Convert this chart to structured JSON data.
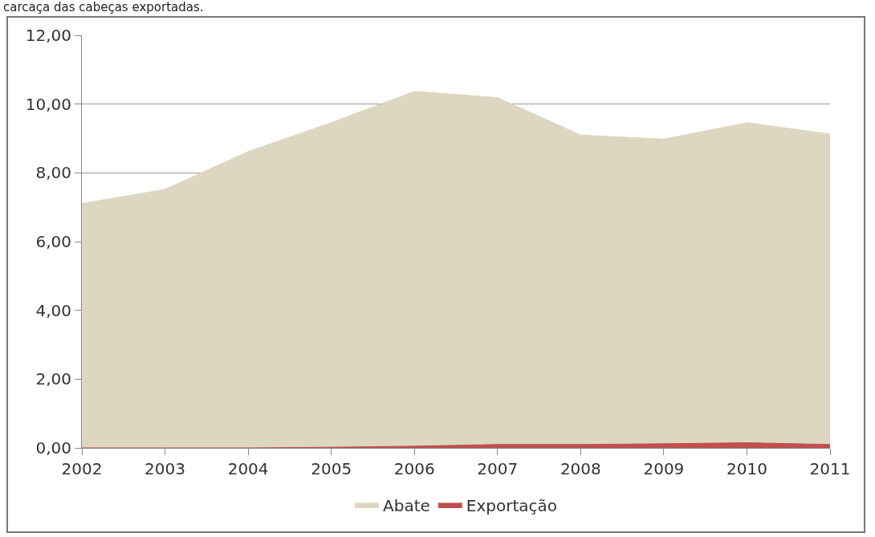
{
  "chart_data": {
    "type": "area",
    "annotations": [
      "carcaça das cabeças exportadas."
    ],
    "categories": [
      "2002",
      "2003",
      "2004",
      "2005",
      "2006",
      "2007",
      "2008",
      "2009",
      "2010",
      "2011"
    ],
    "series": [
      {
        "name": "Abate",
        "color": "#ddd6c1",
        "values": [
          7.11,
          7.52,
          8.62,
          9.46,
          10.37,
          10.19,
          9.1,
          8.98,
          9.46,
          9.13
        ]
      },
      {
        "name": "Exportação",
        "color": "#c0504d",
        "values": [
          0,
          0,
          0,
          0.02,
          0.05,
          0.1,
          0.1,
          0.12,
          0.15,
          0.1
        ]
      }
    ],
    "ylim": [
      0,
      12
    ],
    "yticks": [
      {
        "value": 0,
        "label": "0,00"
      },
      {
        "value": 2,
        "label": "2,00"
      },
      {
        "value": 4,
        "label": "4,00"
      },
      {
        "value": 6,
        "label": "6,00"
      },
      {
        "value": 8,
        "label": "8,00"
      },
      {
        "value": 10,
        "label": "10,00"
      },
      {
        "value": 12,
        "label": "12,00"
      }
    ],
    "grid": "y",
    "legend": "bottom"
  }
}
